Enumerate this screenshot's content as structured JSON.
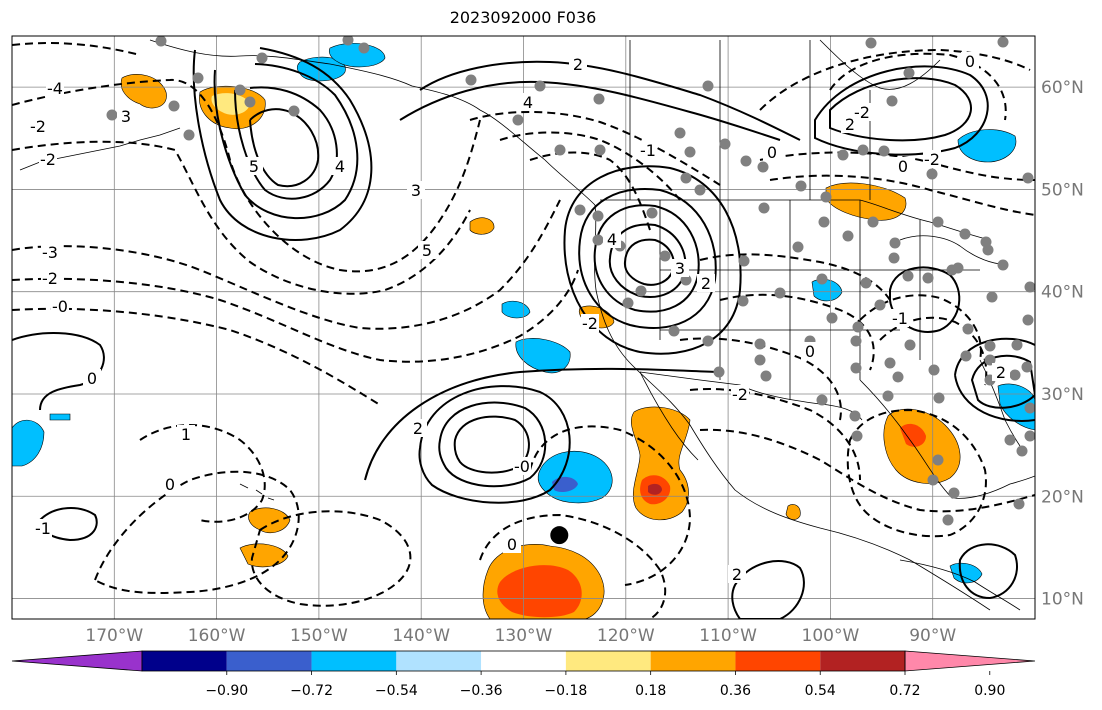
{
  "title": "2023092000 F036",
  "map": {
    "lon_range": [
      -180,
      -80
    ],
    "lat_range": [
      8,
      65
    ],
    "lon_ticks": [
      "170°W",
      "160°W",
      "150°W",
      "140°W",
      "130°W",
      "120°W",
      "110°W",
      "100°W",
      "90°W"
    ],
    "lat_ticks": [
      "10°N",
      "20°N",
      "30°N",
      "40°N",
      "50°N",
      "60°N"
    ],
    "gridlines": true,
    "contour_labels": [
      {
        "text": "-4"
      },
      {
        "text": "3"
      },
      {
        "text": "-2"
      },
      {
        "text": "5"
      },
      {
        "text": "4"
      },
      {
        "text": "-3"
      },
      {
        "text": "-2"
      },
      {
        "text": "-0"
      },
      {
        "text": "0"
      },
      {
        "text": "3"
      },
      {
        "text": "2"
      },
      {
        "text": "-2"
      },
      {
        "text": "4"
      },
      {
        "text": "-1"
      },
      {
        "text": "0"
      },
      {
        "text": "1"
      },
      {
        "text": "0"
      },
      {
        "text": "-1"
      },
      {
        "text": "0"
      },
      {
        "text": "2"
      },
      {
        "text": "2"
      },
      {
        "text": "-0"
      },
      {
        "text": "5"
      },
      {
        "text": "4"
      },
      {
        "text": "3"
      },
      {
        "text": "2"
      },
      {
        "text": "-2"
      },
      {
        "text": "-2"
      },
      {
        "text": "0"
      },
      {
        "text": "-1"
      },
      {
        "text": "2"
      },
      {
        "text": "2"
      },
      {
        "text": "-2"
      },
      {
        "text": "0"
      },
      {
        "text": "-2"
      },
      {
        "text": "0"
      }
    ],
    "marker": {
      "label": "storm-center-marker",
      "lon": -126.5,
      "lat": 16.2
    }
  },
  "colorbar": {
    "ticks": [
      "−0.90",
      "−0.72",
      "−0.54",
      "−0.36",
      "−0.18",
      "0.18",
      "0.36",
      "0.54",
      "0.72",
      "0.90"
    ],
    "colors": [
      "#9932cc",
      "#00008b",
      "#3a5fcd",
      "#00bfff",
      "#b0e2ff",
      "#ffffff",
      "#ffe97f",
      "#ffa500",
      "#ff4500",
      "#b22222",
      "#ff88aa"
    ]
  }
}
